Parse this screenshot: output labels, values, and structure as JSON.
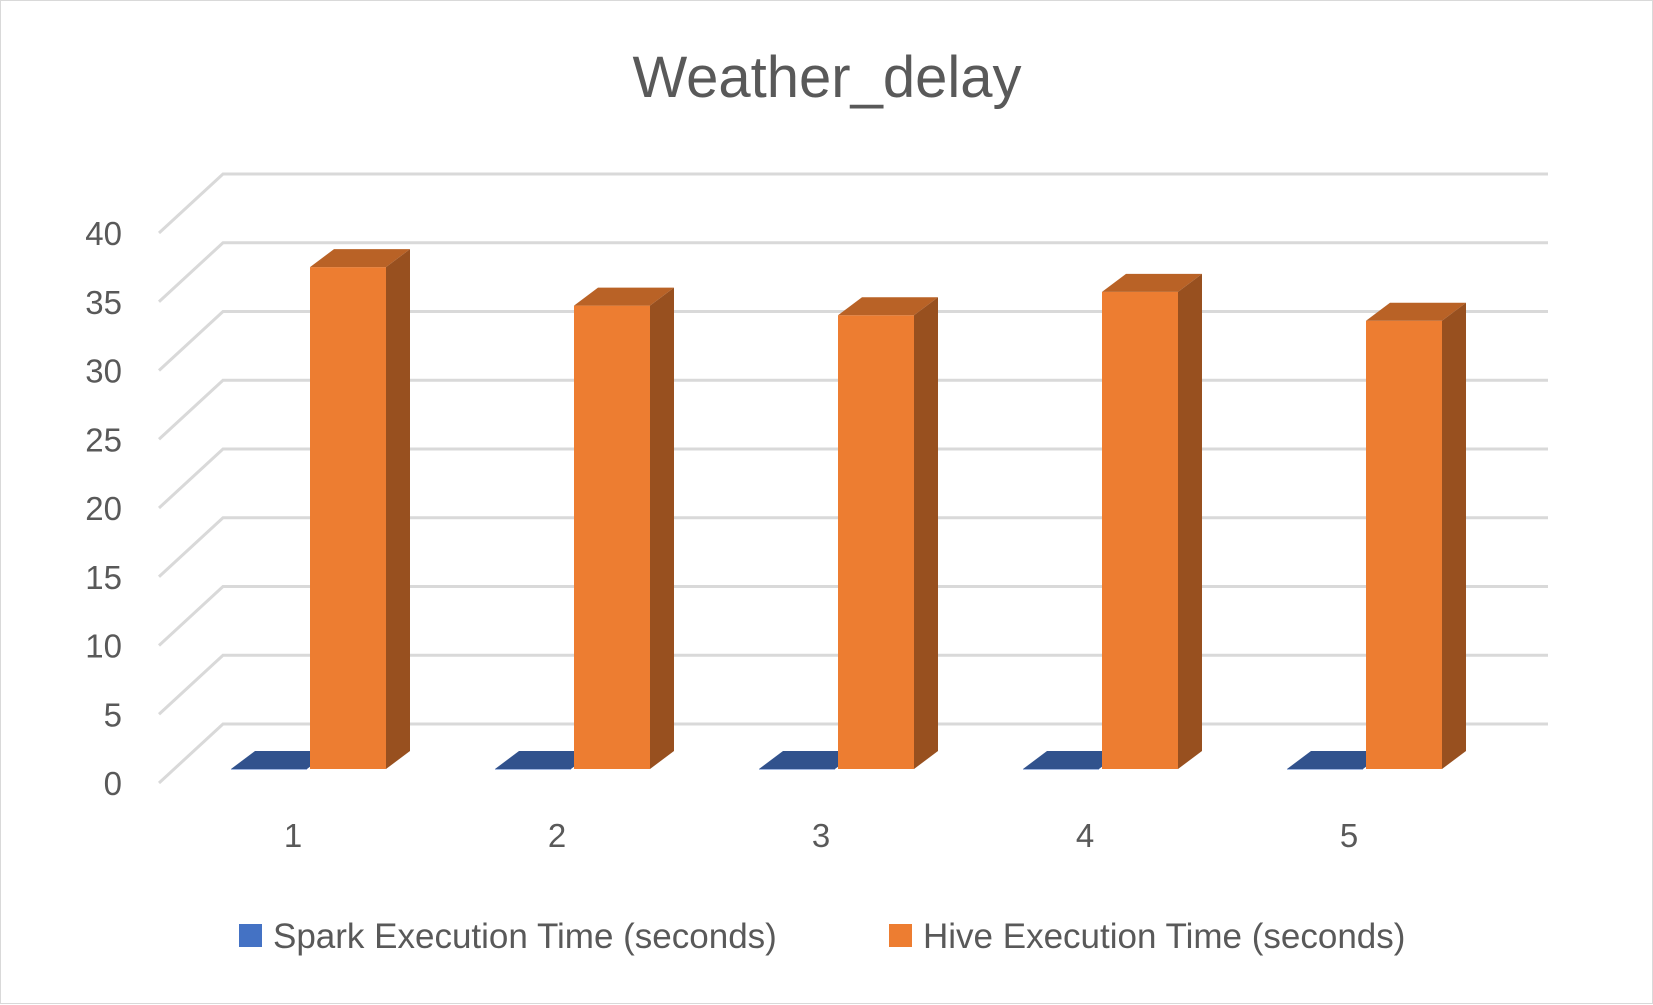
{
  "chart_data": {
    "type": "bar",
    "style": "3d-clustered-column",
    "title": "Weather_delay",
    "xlabel": "",
    "ylabel": "",
    "categories": [
      "1",
      "2",
      "3",
      "4",
      "5"
    ],
    "ylim": [
      0,
      40
    ],
    "yticks": [
      "0",
      "5",
      "10",
      "15",
      "20",
      "25",
      "30",
      "35",
      "40"
    ],
    "grid": true,
    "legend_position": "bottom",
    "series": [
      {
        "name": "Spark Execution Time (seconds)",
        "values": [
          0,
          0,
          0,
          0,
          0
        ],
        "color": "#4472C4"
      },
      {
        "name": "Hive Execution Time (seconds)",
        "values": [
          36.5,
          33.7,
          33.0,
          34.7,
          32.6
        ],
        "color": "#ED7D31"
      }
    ]
  }
}
